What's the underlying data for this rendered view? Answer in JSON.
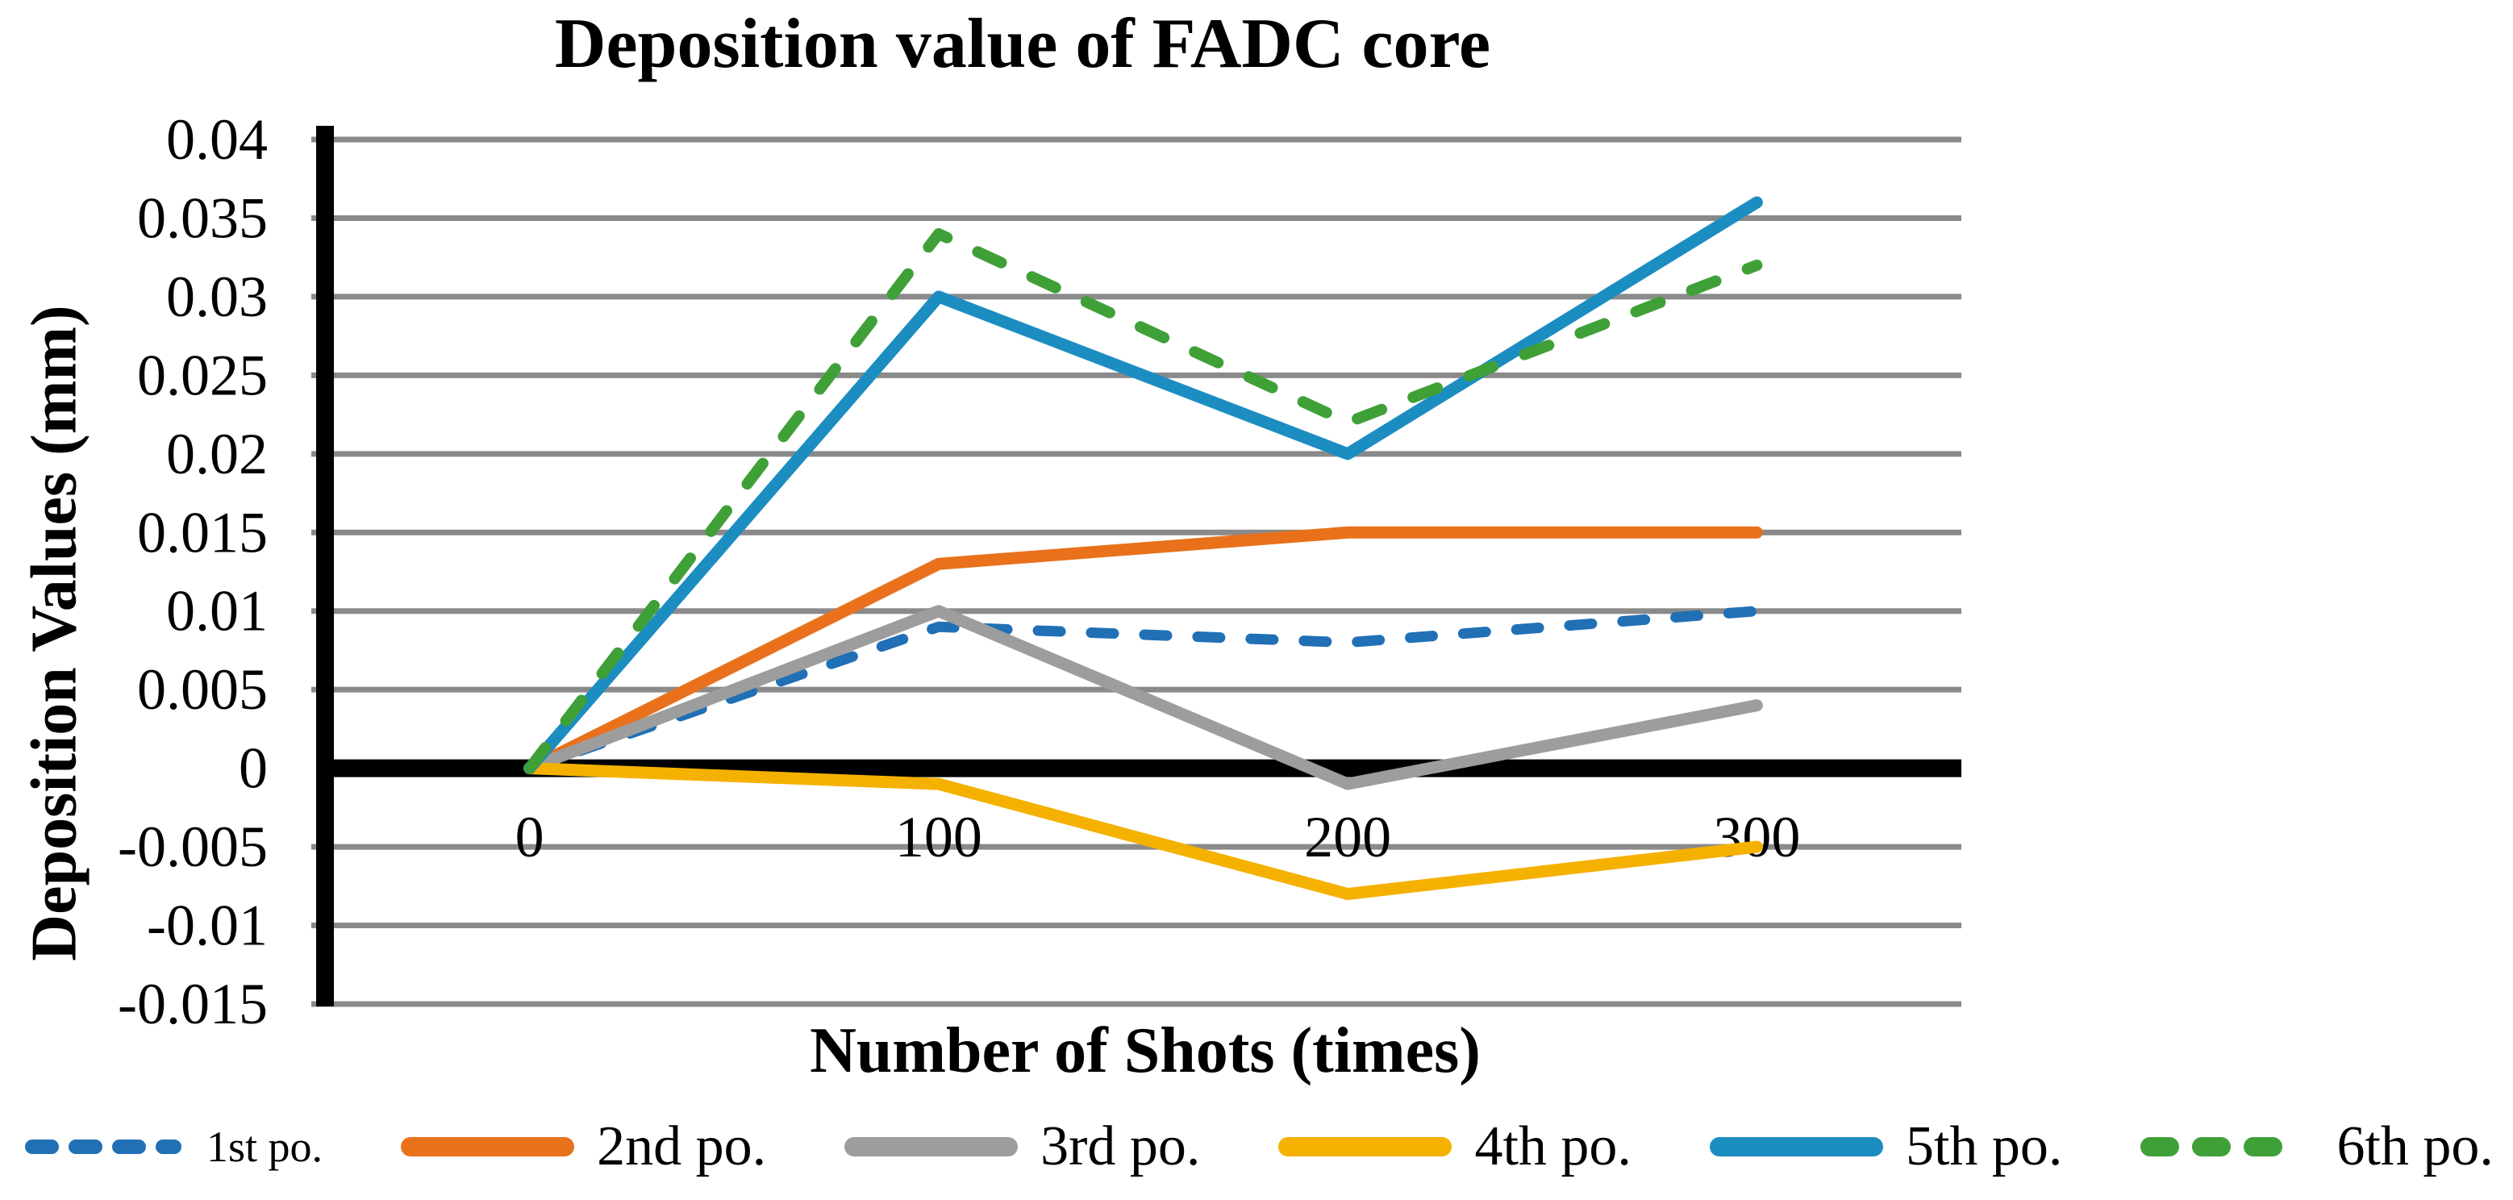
{
  "title": "Deposition value of FADC core",
  "axes": {
    "y_title": "Deposition Values (mm)",
    "x_title": "Number of Shots (times)"
  },
  "colors": {
    "background": "#FFFFFF",
    "gridline": "#8A8A8A",
    "axis_line": "#000000",
    "text": "#000000"
  },
  "chart_data": {
    "type": "line",
    "title": "Deposition value of FADC core",
    "xlabel": "Number of Shots (times)",
    "ylabel": "Deposition Values (mm)",
    "categories": [
      "0",
      "100",
      "200",
      "300"
    ],
    "ylim": [
      -0.015,
      0.04
    ],
    "ytick_step": 0.005,
    "ytick_labels": [
      "0.04",
      "0.035",
      "0.03",
      "0.025",
      "0.02",
      "0.015",
      "0.01",
      "0.005",
      "0",
      "-0.005",
      "-0.01",
      "-0.015"
    ],
    "grid": "horizontal-only",
    "legend_position": "bottom",
    "series": [
      {
        "name": "1st po.",
        "color": "#2170B5",
        "dashed": true,
        "values": [
          0,
          0.009,
          0.008,
          0.01
        ]
      },
      {
        "name": "2nd po.",
        "color": "#E9711C",
        "dashed": false,
        "values": [
          0,
          0.013,
          0.015,
          0.015
        ]
      },
      {
        "name": "3rd po.",
        "color": "#9D9D9D",
        "dashed": false,
        "values": [
          0,
          0.01,
          -0.001,
          0.004
        ]
      },
      {
        "name": "4th po.",
        "color": "#F5B100",
        "dashed": false,
        "values": [
          0,
          -0.001,
          -0.008,
          -0.005
        ]
      },
      {
        "name": "5th po.",
        "color": "#1C8DC1",
        "dashed": false,
        "values": [
          0,
          0.03,
          0.02,
          0.036
        ]
      },
      {
        "name": "6th po.",
        "color": "#3FA037",
        "dashed": true,
        "values": [
          0,
          0.034,
          0.022,
          0.032
        ]
      }
    ]
  }
}
